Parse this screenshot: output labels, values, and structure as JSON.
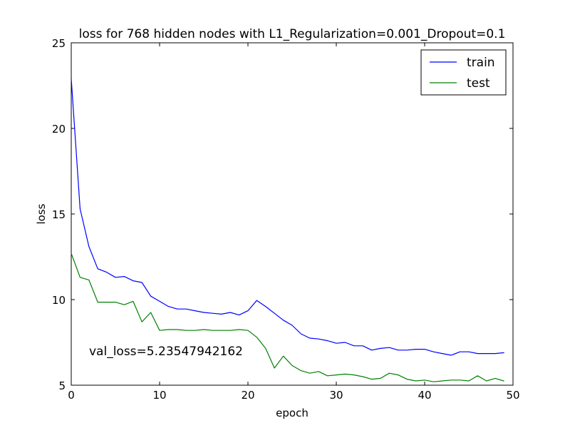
{
  "chart_data": {
    "type": "line",
    "title": "loss for 768 hidden nodes with L1_Regularization=0.001_Dropout=0.1",
    "xlabel": "epoch",
    "ylabel": "loss",
    "xlim": [
      0,
      50
    ],
    "ylim": [
      5,
      25
    ],
    "xticks": [
      "0",
      "10",
      "20",
      "30",
      "40",
      "50"
    ],
    "yticks": [
      "5",
      "10",
      "15",
      "20",
      "25"
    ],
    "legend_position": "top-right",
    "annotation": "val_loss=5.23547942162",
    "series": [
      {
        "name": "train",
        "color": "#0000ff",
        "x": [
          0,
          1,
          2,
          3,
          4,
          5,
          6,
          7,
          8,
          9,
          10,
          11,
          12,
          13,
          14,
          15,
          16,
          17,
          18,
          19,
          20,
          21,
          22,
          23,
          24,
          25,
          26,
          27,
          28,
          29,
          30,
          31,
          32,
          33,
          34,
          35,
          36,
          37,
          38,
          39,
          40,
          41,
          42,
          43,
          44,
          45,
          46,
          47,
          48,
          49
        ],
        "values": [
          22.9,
          15.3,
          13.1,
          11.8,
          11.6,
          11.3,
          11.35,
          11.1,
          11.0,
          10.2,
          9.9,
          9.6,
          9.45,
          9.45,
          9.35,
          9.25,
          9.2,
          9.15,
          9.25,
          9.1,
          9.35,
          9.95,
          9.6,
          9.2,
          8.8,
          8.5,
          8.0,
          7.75,
          7.7,
          7.6,
          7.45,
          7.5,
          7.3,
          7.3,
          7.05,
          7.15,
          7.2,
          7.05,
          7.05,
          7.1,
          7.1,
          6.95,
          6.85,
          6.75,
          6.95,
          6.95,
          6.85,
          6.85,
          6.85,
          6.9
        ]
      },
      {
        "name": "test",
        "color": "#008000",
        "x": [
          0,
          1,
          2,
          3,
          4,
          5,
          6,
          7,
          8,
          9,
          10,
          11,
          12,
          13,
          14,
          15,
          16,
          17,
          18,
          19,
          20,
          21,
          22,
          23,
          24,
          25,
          26,
          27,
          28,
          29,
          30,
          31,
          32,
          33,
          34,
          35,
          36,
          37,
          38,
          39,
          40,
          41,
          42,
          43,
          44,
          45,
          46,
          47,
          48,
          49
        ],
        "values": [
          12.7,
          11.3,
          11.15,
          9.85,
          9.85,
          9.85,
          9.7,
          9.9,
          8.7,
          9.25,
          8.2,
          8.25,
          8.25,
          8.2,
          8.2,
          8.25,
          8.2,
          8.2,
          8.2,
          8.25,
          8.2,
          7.8,
          7.15,
          6.0,
          6.7,
          6.15,
          5.85,
          5.7,
          5.8,
          5.55,
          5.6,
          5.65,
          5.6,
          5.5,
          5.35,
          5.4,
          5.7,
          5.6,
          5.35,
          5.25,
          5.3,
          5.2,
          5.25,
          5.3,
          5.3,
          5.25,
          5.55,
          5.25,
          5.4,
          5.24
        ]
      }
    ]
  }
}
